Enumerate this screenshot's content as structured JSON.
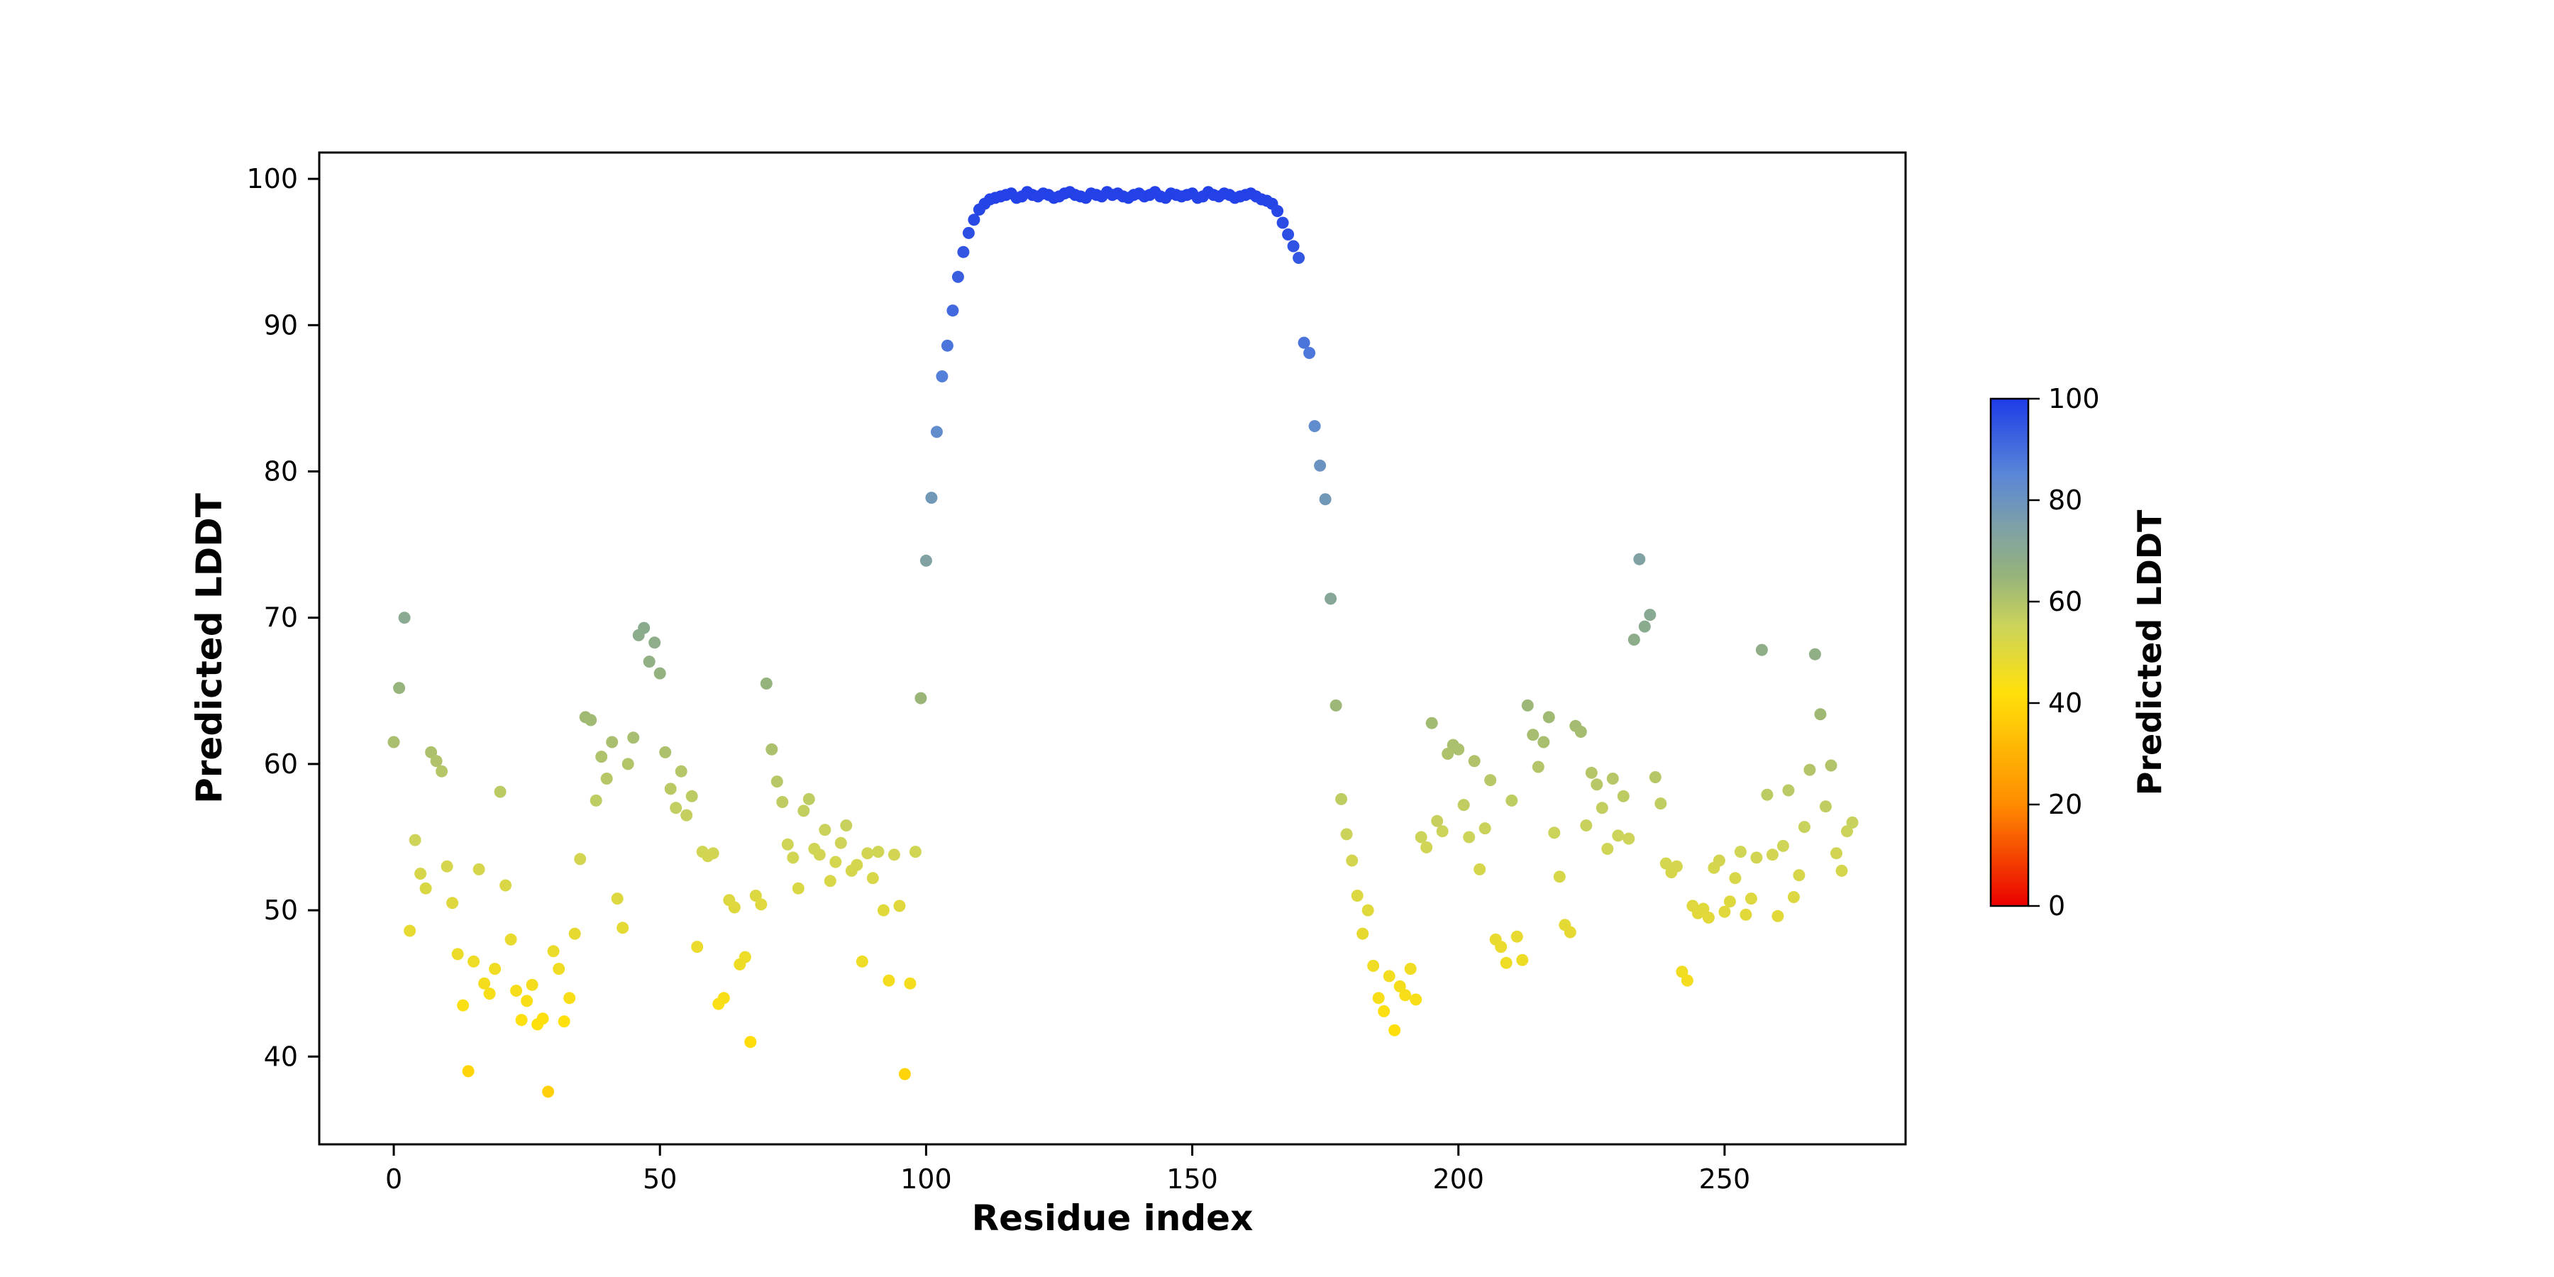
{
  "chart_data": {
    "type": "scatter",
    "title": "",
    "xlabel": "Residue index",
    "ylabel": "Predicted LDDT",
    "x_start": 0,
    "n_points": 275,
    "xlim": [
      -14,
      284
    ],
    "ylim": [
      34,
      101.8
    ],
    "xticks": [
      0,
      50,
      100,
      150,
      200,
      250
    ],
    "yticks": [
      40,
      50,
      60,
      70,
      80,
      90,
      100
    ],
    "grid": false,
    "legend": "none",
    "marker_color_by": "value",
    "colorbar": {
      "label": "Predicted LDDT",
      "min": 0,
      "max": 100,
      "ticks": [
        0,
        20,
        40,
        60,
        80,
        100
      ],
      "position": "right"
    },
    "colormap": [
      [
        0.0,
        "#eb0000"
      ],
      [
        0.2,
        "#ff8c00"
      ],
      [
        0.42,
        "#ffe00a"
      ],
      [
        0.55,
        "#cdd45a"
      ],
      [
        0.65,
        "#96b47a"
      ],
      [
        0.75,
        "#7da0a8"
      ],
      [
        0.85,
        "#5a87d7"
      ],
      [
        1.0,
        "#1f3ce8"
      ]
    ],
    "values": [
      61.5,
      65.2,
      70.0,
      48.6,
      54.8,
      52.5,
      51.5,
      60.8,
      60.2,
      59.5,
      53.0,
      50.5,
      47.0,
      43.5,
      39.0,
      46.5,
      52.8,
      45.0,
      44.3,
      46.0,
      58.1,
      51.7,
      48.0,
      44.5,
      42.5,
      43.8,
      44.9,
      42.2,
      42.6,
      37.6,
      47.2,
      46.0,
      42.4,
      44.0,
      48.4,
      53.5,
      63.2,
      63.0,
      57.5,
      60.5,
      59.0,
      61.5,
      50.8,
      48.8,
      60.0,
      61.8,
      68.8,
      69.3,
      67.0,
      68.3,
      66.2,
      60.8,
      58.3,
      57.0,
      59.5,
      56.5,
      57.8,
      47.5,
      54.0,
      53.7,
      53.9,
      43.6,
      44.0,
      50.7,
      50.2,
      46.3,
      46.8,
      41.0,
      51.0,
      50.4,
      65.5,
      61.0,
      58.8,
      57.4,
      54.5,
      53.6,
      51.5,
      56.8,
      57.6,
      54.2,
      53.8,
      55.5,
      52.0,
      53.3,
      54.6,
      55.8,
      52.7,
      53.1,
      46.5,
      53.9,
      52.2,
      54.0,
      50.0,
      45.2,
      53.8,
      50.3,
      38.8,
      45.0,
      54.0,
      64.5,
      73.9,
      78.2,
      82.7,
      86.5,
      88.6,
      91.0,
      93.3,
      95.0,
      96.3,
      97.2,
      97.9,
      98.3,
      98.6,
      98.7,
      98.8,
      98.9,
      99.0,
      98.7,
      98.8,
      99.1,
      98.9,
      98.8,
      99.0,
      98.9,
      98.7,
      98.8,
      99.0,
      99.1,
      98.9,
      98.8,
      98.7,
      99.0,
      98.9,
      98.8,
      99.1,
      98.9,
      99.0,
      98.8,
      98.7,
      98.9,
      99.0,
      98.8,
      98.9,
      99.1,
      98.8,
      98.7,
      99.0,
      98.9,
      98.8,
      98.9,
      99.0,
      98.7,
      98.8,
      99.1,
      98.9,
      98.8,
      99.0,
      98.9,
      98.7,
      98.8,
      98.9,
      99.0,
      98.8,
      98.6,
      98.5,
      98.3,
      97.8,
      97.0,
      96.2,
      95.4,
      94.6,
      88.8,
      88.1,
      83.1,
      80.4,
      78.1,
      71.3,
      64.0,
      57.6,
      55.2,
      53.4,
      51.0,
      48.4,
      50.0,
      46.2,
      44.0,
      43.1,
      45.5,
      41.8,
      44.8,
      44.2,
      46.0,
      43.9,
      55.0,
      54.3,
      62.8,
      56.1,
      55.4,
      60.7,
      61.3,
      61.0,
      57.2,
      55.0,
      60.2,
      52.8,
      55.6,
      58.9,
      48.0,
      47.5,
      46.4,
      57.5,
      48.2,
      46.6,
      64.0,
      62.0,
      59.8,
      61.5,
      63.2,
      55.3,
      52.3,
      49.0,
      48.5,
      62.6,
      62.2,
      55.8,
      59.4,
      58.6,
      57.0,
      54.2,
      59.0,
      55.1,
      57.8,
      54.9,
      68.5,
      74.0,
      69.4,
      70.2,
      59.1,
      57.3,
      53.2,
      52.6,
      53.0,
      45.8,
      45.2,
      50.3,
      49.8,
      50.1,
      49.5,
      52.9,
      53.4,
      49.9,
      50.6,
      52.2,
      54.0,
      49.7,
      50.8,
      53.6,
      67.8,
      57.9,
      53.8,
      49.6,
      54.4,
      58.2,
      50.9,
      52.4,
      55.7,
      59.6,
      67.5,
      63.4,
      57.1,
      59.9,
      53.9,
      52.7,
      55.4,
      56.0
    ]
  },
  "colors": {
    "background": "#ffffff",
    "axis": "#000000",
    "text": "#000000"
  }
}
